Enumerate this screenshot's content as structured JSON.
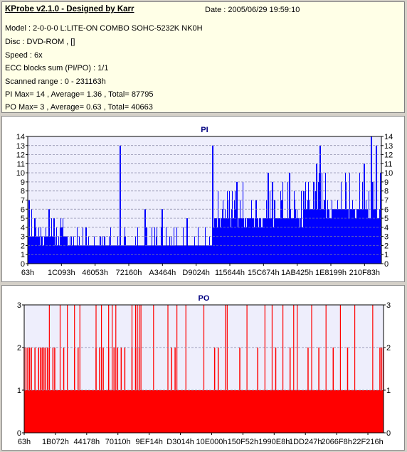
{
  "info": {
    "title": "KProbe v2.1.0 - Designed by Karr",
    "date": "Date : 2005/06/29 19:59:10",
    "lines": [
      "Model : 2-0-0-0 L:LITE-ON COMBO SOHC-5232K NK0H",
      "Disc : DVD-ROM ,  []",
      "Speed : 6x",
      "ECC blocks sum (PI/PO) : 1/1",
      "Scanned range : 0 - 231163h",
      "PI Max= 14 , Average= 1.36 , Total= 87795",
      "PO Max= 3 , Average= 0.63 , Total= 40663"
    ]
  },
  "colors": {
    "pi": "#0000ff",
    "po": "#ff0000",
    "plot_bg": "#eeeefc",
    "grid": "#8080a0"
  },
  "chart_data": [
    {
      "type": "bar",
      "title": "PI",
      "ylim": [
        0,
        14
      ],
      "yticks": [
        0,
        1,
        2,
        3,
        4,
        5,
        6,
        7,
        8,
        9,
        10,
        11,
        12,
        13,
        14
      ],
      "xlim": [
        99,
        231163
      ],
      "xtick_labels": [
        "63h",
        "1C093h",
        "46053h",
        "72160h",
        "A3464h",
        "D9024h",
        "115644h",
        "15C674h",
        "1AB425h",
        "1E8199h",
        "210F83h"
      ],
      "x_range": "0 - 231163h",
      "max": 14,
      "average": 1.36,
      "total": 87795,
      "segments": [
        {
          "from": 0.0,
          "to": 0.11,
          "base": 3,
          "low": 1,
          "high": 6,
          "spikes": [
            [
              0.003,
              7
            ],
            [
              0.06,
              6
            ]
          ]
        },
        {
          "from": 0.11,
          "to": 0.52,
          "base": 2,
          "low": 2,
          "high": 4,
          "spikes": [
            [
              0.26,
              13
            ],
            [
              0.33,
              6
            ],
            [
              0.38,
              6
            ],
            [
              0.45,
              5
            ]
          ]
        },
        {
          "from": 0.52,
          "to": 0.78,
          "base": 5,
          "low": 4,
          "high": 9,
          "spikes": [
            [
              0.523,
              13
            ],
            [
              0.59,
              9
            ],
            [
              0.68,
              10
            ],
            [
              0.74,
              10
            ]
          ]
        },
        {
          "from": 0.78,
          "to": 1.0,
          "base": 6,
          "low": 4,
          "high": 10,
          "spikes": [
            [
              0.815,
              11
            ],
            [
              0.826,
              13
            ],
            [
              0.97,
              14
            ],
            [
              0.985,
              13
            ],
            [
              0.95,
              11
            ]
          ]
        }
      ]
    },
    {
      "type": "bar",
      "title": "PO",
      "ylim": [
        0,
        3
      ],
      "yticks": [
        0,
        1,
        2,
        3
      ],
      "xlim": [
        99,
        231163
      ],
      "xtick_labels": [
        "63h",
        "1B072h",
        "44178h",
        "70110h",
        "9EF14h",
        "D3014h",
        "10E000h",
        "150F52h",
        "1990E8h",
        "1DD247h",
        "2066F8h",
        "22F216h"
      ],
      "x_range": "0 - 231163h",
      "max": 3,
      "average": 0.63,
      "total": 40663,
      "base": 1,
      "twos": [
        0.0,
        0.005,
        0.01,
        0.015,
        0.02,
        0.03,
        0.04,
        0.045,
        0.05,
        0.055,
        0.06,
        0.065,
        0.07,
        0.08,
        0.085,
        0.11,
        0.14,
        0.15,
        0.2,
        0.21,
        0.22,
        0.235,
        0.25,
        0.26,
        0.27,
        0.28,
        0.3,
        0.31,
        0.32,
        0.41,
        0.42,
        0.53,
        0.54,
        0.6,
        0.65,
        0.7,
        0.74,
        0.79,
        0.82,
        0.86,
        0.9,
        0.99,
        0.995,
        1.0
      ],
      "threes": [
        0.07,
        0.1,
        0.12,
        0.14,
        0.155,
        0.2,
        0.215,
        0.235,
        0.245,
        0.255,
        0.3,
        0.31,
        0.315,
        0.32,
        0.325,
        0.36,
        0.4,
        0.425,
        0.45,
        0.5,
        0.56,
        0.565,
        0.62,
        0.67,
        0.69,
        0.72,
        0.75,
        0.76,
        0.8,
        0.84,
        0.88,
        0.92,
        0.97
      ]
    }
  ]
}
